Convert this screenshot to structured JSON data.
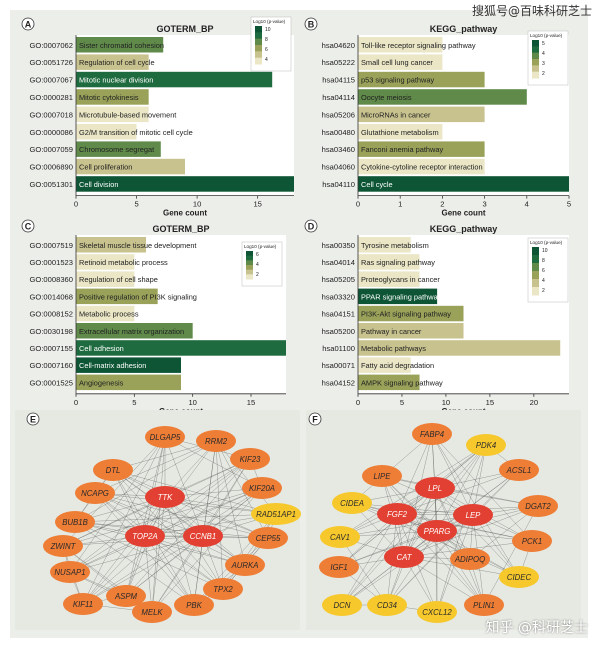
{
  "watermark_top": "搜狐号@百味科研芝士",
  "watermark_bottom": "知乎 @科研芝士",
  "colors": {
    "scale": [
      "#eae6c6",
      "#c8c28e",
      "#9aa25a",
      "#5f8a4a",
      "#1e6b3f",
      "#0d5535"
    ],
    "node_red": "#e24032",
    "node_orange": "#ee7d36",
    "node_yellow": "#f6c82c",
    "edge": "#555555"
  },
  "chart_data": [
    {
      "type": "bar",
      "panel": "A",
      "title": "GOTERM_BP",
      "xlabel": "Gene count",
      "legend_title": "Log10 (p-value)",
      "legend_ticks": [
        "10",
        "8",
        "6",
        "4"
      ],
      "xlim": [
        0,
        18
      ],
      "xticks": [
        "0",
        "5",
        "10",
        "15"
      ],
      "xtick_values": [
        0,
        5,
        10,
        15
      ],
      "categories": [
        "GO:0007062",
        "GO:0051726",
        "GO:0007067",
        "GO:0000281",
        "GO:0007018",
        "GO:0000086",
        "GO:0007059",
        "GO:0006890",
        "GO:0051301"
      ],
      "labels": [
        "Sister chromatid cohesion",
        "Regulation of cell cycle",
        "Mitotic nuclear division",
        "Mitotic cytokinesis",
        "Microtubule-based movement",
        "G2/M transition of mitotic cell cycle",
        "Chromosome segregat",
        "Cell proliferation",
        "Cell division"
      ],
      "values": [
        7.2,
        6,
        16.2,
        6,
        6,
        5,
        7,
        9,
        18
      ],
      "color_levels": [
        3,
        1,
        4,
        2,
        0,
        0,
        3,
        1,
        5
      ]
    },
    {
      "type": "bar",
      "panel": "B",
      "title": "KEGG_pathway",
      "xlabel": "Gene count",
      "legend_title": "Log10 (p-value)",
      "legend_ticks": [
        "5",
        "4",
        "3",
        "2"
      ],
      "xlim": [
        0,
        5
      ],
      "xticks": [
        "0",
        "1",
        "2",
        "3",
        "4",
        "5"
      ],
      "xtick_values": [
        0,
        1,
        2,
        3,
        4,
        5
      ],
      "categories": [
        "hsa04620",
        "hsa05222",
        "hsa04115",
        "hsa04114",
        "hsa05206",
        "hsa00480",
        "hsa03460",
        "hsa04060",
        "hsa04110"
      ],
      "labels": [
        "Toll-like receptor signaling pathway",
        "Small cell lung cancer",
        "p53 signaling pathway",
        "Oocyte meiosis",
        "MicroRNAs in cancer",
        "Glutathione metabolism",
        "Fanconi anemia pathway",
        "Cytokine-cytoline receptor interaction",
        "Cell cycle"
      ],
      "values": [
        2,
        2,
        3,
        4,
        3,
        2,
        3,
        3,
        5
      ],
      "color_levels": [
        0,
        0,
        2,
        3,
        1,
        0,
        2,
        0,
        5
      ]
    },
    {
      "type": "bar",
      "panel": "C",
      "title": "GOTERM_BP",
      "xlabel": "Gene count",
      "legend_title": "Log10 (p-value)",
      "legend_ticks": [
        "6",
        "4",
        "2"
      ],
      "xlim": [
        0,
        18
      ],
      "xticks": [
        "0",
        "5",
        "10",
        "15"
      ],
      "xtick_values": [
        0,
        5,
        10,
        15
      ],
      "categories": [
        "GO:0007519",
        "GO:0001523",
        "GO:0008360",
        "GO:0014068",
        "GO:0008152",
        "GO:0030198",
        "GO:0007155",
        "GO:0007160",
        "GO:0001525"
      ],
      "labels": [
        "Skeletal muscle tissue development",
        "Retinoid metabolic process",
        "Regulation of cell shape",
        "Positive regulation of PI3K signaling",
        "Metabolic process",
        "Extracellular matrix organization",
        "Cell adhesion",
        "Cell-matrix adhesion",
        "Angiogenesis"
      ],
      "values": [
        6,
        5,
        5,
        7,
        5,
        10,
        18,
        9,
        9
      ],
      "color_levels": [
        1,
        0,
        0,
        2,
        0,
        3,
        4,
        5,
        2
      ]
    },
    {
      "type": "bar",
      "panel": "D",
      "title": "KEGG_pathway",
      "xlabel": "Gene count",
      "legend_title": "Log10 (p-value)",
      "legend_ticks": [
        "10",
        "8",
        "6",
        "4",
        "2"
      ],
      "xlim": [
        0,
        24
      ],
      "xticks": [
        "0",
        "5",
        "10",
        "15",
        "20"
      ],
      "xtick_values": [
        0,
        5,
        10,
        15,
        20
      ],
      "categories": [
        "hsa00350",
        "hsa04014",
        "hsa05205",
        "hsa03320",
        "hsa04151",
        "hsa05200",
        "hsa01100",
        "hsa00071",
        "hsa04152"
      ],
      "labels": [
        "Tyrosine metabolism",
        "Ras signaling pathway",
        "Proteoglycans in cancer",
        "PPAR signaling pathway",
        "PI3K-Akt signaling pathway",
        "Pathway in cancer",
        "Metabolic pathways",
        "Fatty acid degradation",
        "AMPK signaling pathway"
      ],
      "values": [
        6,
        7,
        7,
        9,
        12,
        12,
        23,
        6,
        7
      ],
      "color_levels": [
        0,
        0,
        0,
        5,
        2,
        1,
        1,
        0,
        2
      ]
    }
  ],
  "networks": [
    {
      "panel": "E",
      "nodes": [
        {
          "label": "DTL",
          "type": "orange"
        },
        {
          "label": "DLGAP5",
          "type": "orange"
        },
        {
          "label": "RRM2",
          "type": "orange"
        },
        {
          "label": "KIF23",
          "type": "orange"
        },
        {
          "label": "NCAPG",
          "type": "orange"
        },
        {
          "label": "KIF20A",
          "type": "orange"
        },
        {
          "label": "BUB1B",
          "type": "orange"
        },
        {
          "label": "TTK",
          "type": "red"
        },
        {
          "label": "RAD51AP1",
          "type": "yellow"
        },
        {
          "label": "ZWINT",
          "type": "orange"
        },
        {
          "label": "TOP2A",
          "type": "red"
        },
        {
          "label": "CCNB1",
          "type": "red"
        },
        {
          "label": "CEP55",
          "type": "orange"
        },
        {
          "label": "NUSAP1",
          "type": "orange"
        },
        {
          "label": "AURKA",
          "type": "orange"
        },
        {
          "label": "KIF11",
          "type": "orange"
        },
        {
          "label": "TPX2",
          "type": "orange"
        },
        {
          "label": "ASPM",
          "type": "orange"
        },
        {
          "label": "PBK",
          "type": "orange"
        },
        {
          "label": "MELK",
          "type": "orange"
        }
      ]
    },
    {
      "panel": "F",
      "nodes": [
        {
          "label": "FABP4",
          "type": "orange"
        },
        {
          "label": "PDK4",
          "type": "yellow"
        },
        {
          "label": "LIPE",
          "type": "orange"
        },
        {
          "label": "ACSL1",
          "type": "orange"
        },
        {
          "label": "CIDEA",
          "type": "yellow"
        },
        {
          "label": "LPL",
          "type": "red"
        },
        {
          "label": "DGAT2",
          "type": "orange"
        },
        {
          "label": "CAV1",
          "type": "yellow"
        },
        {
          "label": "FGF2",
          "type": "red"
        },
        {
          "label": "LEP",
          "type": "red"
        },
        {
          "label": "PPARG",
          "type": "red"
        },
        {
          "label": "IGF1",
          "type": "orange"
        },
        {
          "label": "PCK1",
          "type": "orange"
        },
        {
          "label": "CAT",
          "type": "red"
        },
        {
          "label": "ADIPOQ",
          "type": "orange"
        },
        {
          "label": "DCN",
          "type": "yellow"
        },
        {
          "label": "CIDEC",
          "type": "yellow"
        },
        {
          "label": "CD34",
          "type": "yellow"
        },
        {
          "label": "PLIN1",
          "type": "orange"
        },
        {
          "label": "CXCL12",
          "type": "yellow"
        }
      ]
    }
  ]
}
